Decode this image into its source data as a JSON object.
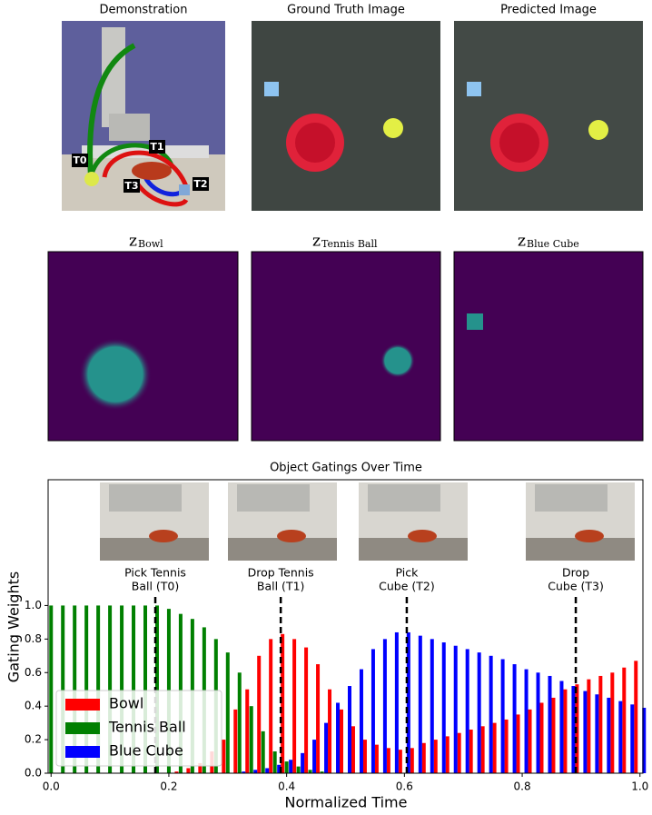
{
  "panels": {
    "top_titles": [
      "Demonstration",
      "Ground Truth Image",
      "Predicted Image"
    ],
    "demo_labels": [
      "T0",
      "T1",
      "T2",
      "T3"
    ],
    "latent_titles": [
      {
        "symbol": "z",
        "subscript": "Bowl"
      },
      {
        "symbol": "z",
        "subscript": "Tennis Ball"
      },
      {
        "symbol": "z",
        "subscript": "Blue Cube"
      }
    ]
  },
  "chart_data": {
    "type": "bar",
    "title": "Object Gatings Over Time",
    "x_label": "Normalized Time",
    "y_label": "Gating Weights",
    "x": [
      0,
      0.02,
      0.04,
      0.06,
      0.08,
      0.1,
      0.12,
      0.14,
      0.16,
      0.18,
      0.2,
      0.22,
      0.24,
      0.26,
      0.28,
      0.3,
      0.32,
      0.34,
      0.36,
      0.38,
      0.4,
      0.42,
      0.44,
      0.46,
      0.48,
      0.5,
      0.52,
      0.54,
      0.56,
      0.58,
      0.6,
      0.62,
      0.64,
      0.66,
      0.68,
      0.7,
      0.72,
      0.74,
      0.76,
      0.78,
      0.8,
      0.82,
      0.84,
      0.86,
      0.88,
      0.9,
      0.92,
      0.94,
      0.96,
      0.98,
      1
    ],
    "series": [
      {
        "name": "Bowl",
        "color": "#ff0000",
        "values": [
          0,
          0,
          0,
          0,
          0,
          0,
          0,
          0,
          0,
          0,
          0,
          0.01,
          0.03,
          0.06,
          0.13,
          0.2,
          0.38,
          0.5,
          0.7,
          0.8,
          0.83,
          0.8,
          0.75,
          0.65,
          0.5,
          0.38,
          0.28,
          0.2,
          0.17,
          0.15,
          0.14,
          0.15,
          0.18,
          0.2,
          0.22,
          0.24,
          0.26,
          0.28,
          0.3,
          0.32,
          0.35,
          0.38,
          0.42,
          0.45,
          0.5,
          0.53,
          0.56,
          0.58,
          0.6,
          0.63,
          0.67
        ]
      },
      {
        "name": "Tennis Ball",
        "color": "#008000",
        "values": [
          1,
          1,
          1,
          1,
          1,
          1,
          1,
          1,
          1,
          1,
          0.98,
          0.95,
          0.92,
          0.87,
          0.8,
          0.72,
          0.6,
          0.4,
          0.25,
          0.13,
          0.07,
          0.04,
          0.02,
          0.01,
          0,
          0,
          0,
          0,
          0,
          0,
          0,
          0,
          0,
          0,
          0,
          0,
          0,
          0,
          0,
          0,
          0,
          0,
          0,
          0,
          0,
          0,
          0,
          0,
          0,
          0,
          0
        ]
      },
      {
        "name": "Blue Cube",
        "color": "#0000ff",
        "values": [
          0,
          0,
          0,
          0,
          0,
          0,
          0,
          0,
          0,
          0,
          0,
          0,
          0,
          0,
          0,
          0,
          0.01,
          0.02,
          0.03,
          0.05,
          0.08,
          0.12,
          0.2,
          0.3,
          0.42,
          0.52,
          0.62,
          0.74,
          0.8,
          0.84,
          0.84,
          0.82,
          0.8,
          0.78,
          0.76,
          0.74,
          0.72,
          0.7,
          0.68,
          0.65,
          0.62,
          0.6,
          0.58,
          0.55,
          0.52,
          0.49,
          0.47,
          0.45,
          0.43,
          0.41,
          0.39
        ]
      }
    ],
    "annotations": [
      {
        "lines": [
          "Pick Tennis",
          "Ball (T0)"
        ],
        "x": 0.177
      },
      {
        "lines": [
          "Drop Tennis",
          "Ball (T1)"
        ],
        "x": 0.39
      },
      {
        "lines": [
          "Pick",
          "Cube (T2)"
        ],
        "x": 0.604
      },
      {
        "lines": [
          "Drop",
          "Cube (T3)"
        ],
        "x": 0.891
      }
    ],
    "xlim": [
      -0.005,
      1.005
    ],
    "ylim": [
      0,
      1.75
    ],
    "xticks": [
      {
        "value": 0,
        "label": "0.0"
      },
      {
        "value": 0.2,
        "label": "0.2"
      },
      {
        "value": 0.4,
        "label": "0.4"
      },
      {
        "value": 0.6,
        "label": "0.6"
      },
      {
        "value": 0.8,
        "label": "0.8"
      },
      {
        "value": 1,
        "label": "1.0"
      }
    ],
    "yticks": [
      {
        "value": 0,
        "label": "0.0"
      },
      {
        "value": 0.2,
        "label": "0.2"
      },
      {
        "value": 0.4,
        "label": "0.4"
      },
      {
        "value": 0.6,
        "label": "0.6"
      },
      {
        "value": 0.8,
        "label": "0.8"
      },
      {
        "value": 1,
        "label": "1.0"
      }
    ],
    "legend": "lower left"
  }
}
